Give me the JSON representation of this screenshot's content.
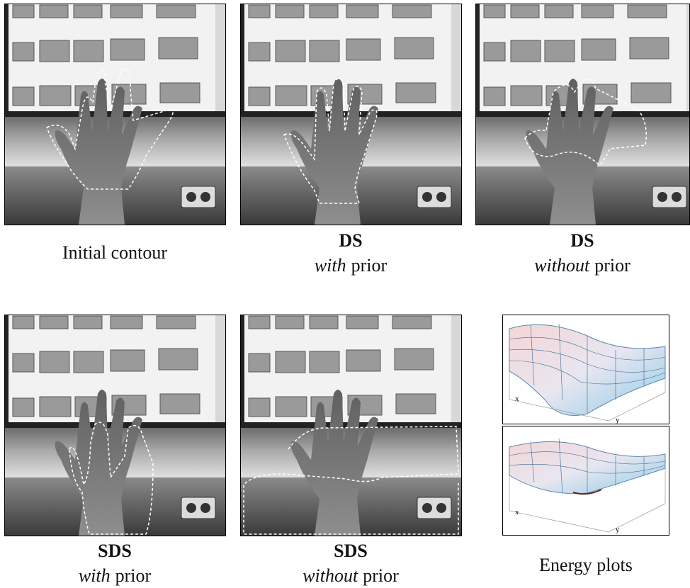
{
  "panels": [
    {
      "caption": "Initial contour"
    },
    {
      "title": "DS",
      "emph": "with",
      "rest": "prior"
    },
    {
      "title": "DS",
      "emph": "without",
      "rest": "prior"
    },
    {
      "title": "SDS",
      "emph": "with",
      "rest": "prior"
    },
    {
      "title": "SDS",
      "emph": "without",
      "rest": "prior"
    }
  ],
  "energy": {
    "caption": "Energy plots",
    "plots": [
      {
        "x": "x",
        "y": "y"
      },
      {
        "x": "x",
        "y": "y"
      }
    ]
  }
}
